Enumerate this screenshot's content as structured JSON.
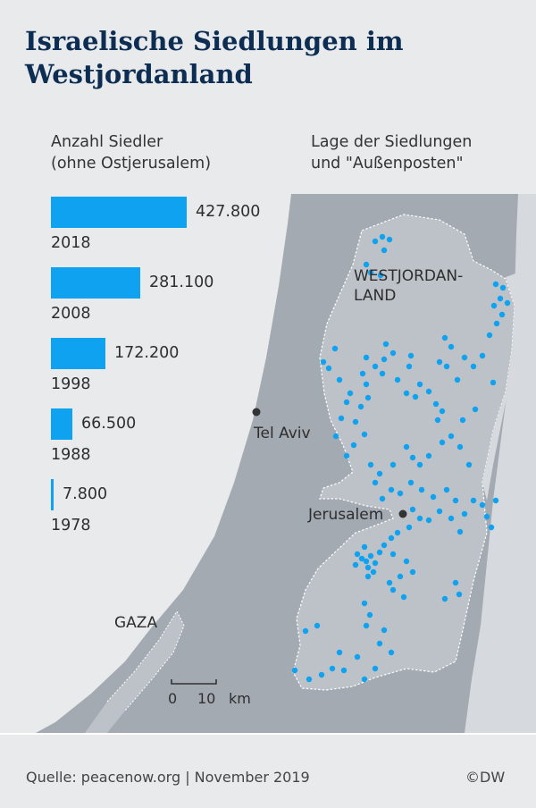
{
  "title_lines": [
    "Israelische Siedlungen im",
    "Westjordanland"
  ],
  "left_heading_lines": [
    "Anzahl Siedler",
    "(ohne Ostjerusalem)"
  ],
  "right_heading_lines": [
    "Lage der Siedlungen",
    "und \"Außenposten\""
  ],
  "chart_data": {
    "type": "bar",
    "orientation": "horizontal",
    "categories": [
      "2018",
      "2008",
      "1998",
      "1988",
      "1978"
    ],
    "values": [
      427800,
      281100,
      172200,
      66500,
      7800
    ],
    "value_labels": [
      "427.800",
      "281.100",
      "172.200",
      "66.500",
      "7.800"
    ],
    "title": "",
    "xlabel": "",
    "ylabel": "",
    "color": "#0ea2f1"
  },
  "map": {
    "region_label_lines": [
      "WESTJORDAN-",
      "LAND"
    ],
    "city_tel_aviv": "Tel Aviv",
    "city_jerusalem": "Jerusalem",
    "gaza_label": "GAZA",
    "scale_label_0": "0",
    "scale_label_10": "10",
    "scale_unit": "km",
    "colors": {
      "sea": "#e8eaec",
      "israel": "#a4aab2",
      "west_bank": "#bcc2c8",
      "jordan": "#d6dade",
      "settlement": "#0ea2f1"
    }
  },
  "footer": {
    "source": "Quelle: peacenow.org | November 2019",
    "copyright": "©DW"
  }
}
